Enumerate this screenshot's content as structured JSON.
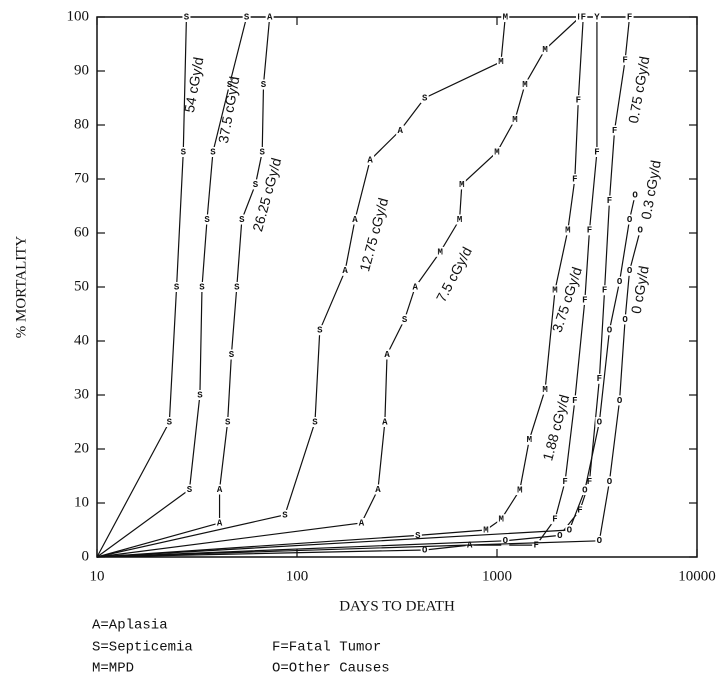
{
  "chart_data": {
    "type": "line",
    "xlabel": "DAYS TO DEATH",
    "ylabel": "% MORTALITY",
    "xscale": "log",
    "xlim": [
      10,
      10000
    ],
    "xticks": [
      10,
      100,
      1000,
      10000
    ],
    "ylim": [
      0,
      100
    ],
    "yticks": [
      0,
      10,
      20,
      30,
      40,
      50,
      60,
      70,
      80,
      90,
      100
    ],
    "color": "#111111",
    "legend": [
      "A=Aplasia",
      "S=Septicemia",
      "M=MPD",
      "F=Fatal Tumor",
      "O=Other Causes"
    ],
    "series": [
      {
        "name": "54 cGy/d",
        "x": [
          10,
          23,
          25,
          27,
          28
        ],
        "values": [
          0,
          25,
          50,
          75,
          100
        ],
        "markers": [
          null,
          "S",
          "S",
          "S",
          "S"
        ]
      },
      {
        "name": "37.5 cGy/d",
        "x": [
          10,
          29,
          32.7,
          33.5,
          35.5,
          38,
          46,
          56
        ],
        "values": [
          0,
          12.5,
          30,
          50,
          62.5,
          75,
          87.5,
          100
        ],
        "markers": [
          null,
          "S",
          "S",
          "S",
          "S",
          "S",
          "S",
          "S"
        ]
      },
      {
        "name": "26.25 cGy/d",
        "x": [
          10,
          41,
          41,
          45,
          47,
          50,
          53,
          62,
          67,
          68,
          73
        ],
        "values": [
          0,
          6.3,
          12.5,
          25,
          37.5,
          50,
          62.5,
          69,
          75,
          87.5,
          100
        ],
        "markers": [
          null,
          "A",
          "A",
          "S",
          "S",
          "S",
          "S",
          "S",
          "S",
          "S",
          "A"
        ]
      },
      {
        "name": "12.75 cGy/d",
        "x": [
          10,
          87,
          123,
          130,
          174,
          195,
          232,
          328,
          435,
          1047,
          1100
        ],
        "values": [
          0,
          7.8,
          25,
          42,
          53,
          62.5,
          73.5,
          79,
          85,
          91.7,
          100
        ],
        "markers": [
          null,
          "S",
          "S",
          "S",
          "A",
          "A",
          "A",
          "A",
          "S",
          "M",
          "M"
        ]
      },
      {
        "name": "7.5 cGy/d",
        "x": [
          10,
          210,
          254,
          275,
          282,
          345,
          390,
          520,
          650,
          667,
          1000,
          1230,
          1380,
          1740,
          2600
        ],
        "values": [
          0,
          6.3,
          12.5,
          25,
          37.5,
          44,
          50,
          56.5,
          62.5,
          69,
          75,
          81,
          87.5,
          94,
          100
        ],
        "markers": [
          null,
          "A",
          "A",
          "A",
          "A",
          "S",
          "A",
          "M",
          "M",
          "M",
          "M",
          "M",
          "M",
          "M",
          "F"
        ]
      },
      {
        "name": "3.75 cGy/d",
        "x": [
          10,
          402,
          880,
          1050,
          1300,
          1450,
          1740,
          1950,
          2260,
          2450,
          2550,
          2700
        ],
        "values": [
          0,
          4,
          5,
          7,
          12.4,
          21.7,
          31,
          49.4,
          60.5,
          70,
          84.6,
          100
        ],
        "markers": [
          null,
          "S",
          "M",
          "M",
          "M",
          "M",
          "M",
          "M",
          "M",
          "F",
          "F",
          "F"
        ]
      },
      {
        "name": "1.88 cGy/d",
        "x": [
          10,
          435,
          730,
          1570,
          1950,
          2190,
          2450,
          2750,
          2900,
          3160,
          3160
        ],
        "values": [
          0,
          1.3,
          2.2,
          2.2,
          7,
          14,
          29,
          47.6,
          60.5,
          75,
          100
        ],
        "markers": [
          null,
          "O",
          "A",
          "F",
          "F",
          "F",
          "F",
          "F",
          "F",
          "F",
          "Y"
        ]
      },
      {
        "name": "0.75 cGy/d",
        "x": [
          10,
          1100,
          2060,
          2600,
          2900,
          3250,
          3450,
          3650,
          3870,
          4370,
          4600
        ],
        "values": [
          0,
          3,
          4,
          8.7,
          14,
          33,
          49.4,
          66,
          79,
          92,
          100
        ],
        "markers": [
          null,
          "O",
          "O",
          "F",
          "F",
          "F",
          "F",
          "F",
          "F",
          "F",
          "F"
        ]
      },
      {
        "name": "0.3 cGy/d",
        "x": [
          10,
          2300,
          2750,
          3250,
          3650,
          4100,
          4600,
          4900
        ],
        "values": [
          0,
          5,
          12.4,
          25,
          42,
          51,
          62.5,
          67
        ],
        "markers": [
          null,
          "O",
          "O",
          "O",
          "O",
          "O",
          "O",
          "O"
        ]
      },
      {
        "name": "0 cGy/d",
        "x": [
          10,
          3250,
          3650,
          4100,
          4370,
          4600,
          5200
        ],
        "values": [
          0,
          3,
          14,
          29,
          44,
          53,
          60.5
        ],
        "markers": [
          null,
          "O",
          "O",
          "O",
          "O",
          "O",
          "O"
        ]
      }
    ]
  }
}
